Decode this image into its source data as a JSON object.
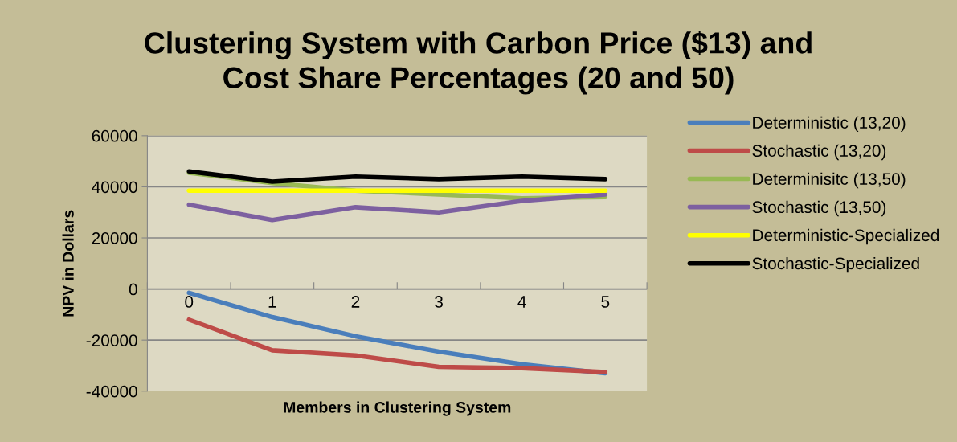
{
  "chart_data": {
    "type": "line",
    "title": "Clustering System with Carbon Price ($13) and\nCost Share Percentages (20 and 50)",
    "xlabel": "Members in Clustering System",
    "ylabel": "NPV in Dollars",
    "categories": [
      "0",
      "1",
      "2",
      "3",
      "4",
      "5"
    ],
    "series": [
      {
        "name": "Deterministic (13,20)",
        "color": "#4a7ebb",
        "values": [
          -1500,
          -11000,
          -18500,
          -24500,
          -29500,
          -33000
        ]
      },
      {
        "name": "Stochastic (13,20)",
        "color": "#be4b48",
        "values": [
          -12000,
          -24000,
          -26000,
          -30500,
          -31000,
          -32500
        ]
      },
      {
        "name": "Determinisitc (13,50)",
        "color": "#98b954",
        "values": [
          45500,
          41500,
          38500,
          37000,
          35500,
          36000
        ]
      },
      {
        "name": "Stochastic (13,50)",
        "color": "#7d60a0",
        "values": [
          33000,
          27000,
          32000,
          30000,
          34500,
          37000
        ]
      },
      {
        "name": "Deterministic-Specialized",
        "color": "#ffff00",
        "values": [
          38500,
          38500,
          38500,
          38500,
          38500,
          38500
        ]
      },
      {
        "name": "Stochastic-Specialized",
        "color": "#000000",
        "values": [
          46000,
          42000,
          44000,
          43000,
          44000,
          43000
        ]
      }
    ],
    "ylim": [
      -40000,
      60000
    ],
    "yticks": [
      -40000,
      -20000,
      0,
      20000,
      40000,
      60000
    ],
    "grid": "y",
    "legend": "right",
    "marker": "none",
    "line_style": "solid"
  }
}
